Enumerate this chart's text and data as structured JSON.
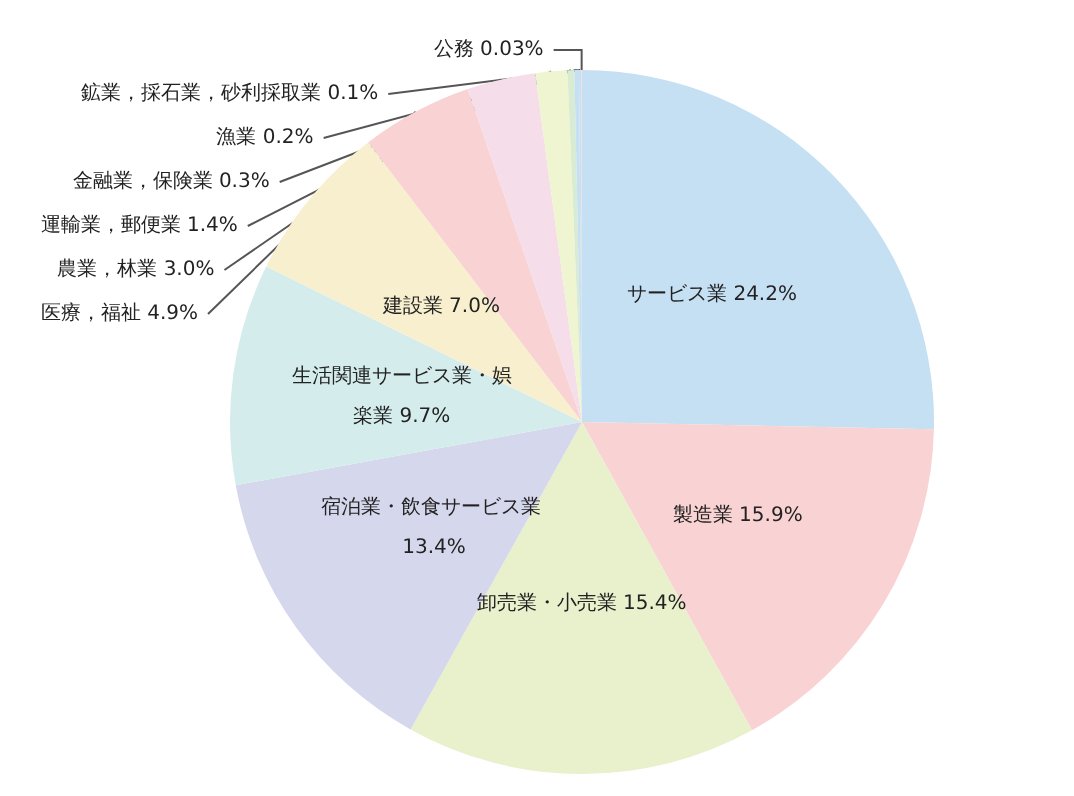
{
  "chart_data": {
    "type": "pie",
    "categories": [
      "サービス業",
      "製造業",
      "卸売業・小売業",
      "宿泊業・飲食サービス業",
      "生活関連サービス業・娯楽業",
      "建設業",
      "医療，福祉",
      "農業，林業",
      "運輸業，郵便業",
      "金融業，保険業",
      "漁業",
      "鉱業，採石業，砂利採取業",
      "公務"
    ],
    "values": [
      24.2,
      15.9,
      15.4,
      13.4,
      9.7,
      7.0,
      4.9,
      3.0,
      1.4,
      0.3,
      0.2,
      0.1,
      0.03
    ],
    "value_labels": [
      "24.2%",
      "15.9%",
      "15.4%",
      "13.4%",
      "9.7%",
      "7.0%",
      "4.9%",
      "3.0%",
      "1.4%",
      "0.3%",
      "0.2%",
      "0.1%",
      "0.03%"
    ],
    "colors": [
      "#c5dff3",
      "#f9d3d3",
      "#e9f0cc",
      "#d5d7ec",
      "#d5ecec",
      "#f8efcf",
      "#f9d3d3",
      "#f5dde9",
      "#eff5d0",
      "#d8ebd3",
      "#c5dff3",
      "#c5dff3",
      "#f9d3d3"
    ],
    "legend": false
  }
}
